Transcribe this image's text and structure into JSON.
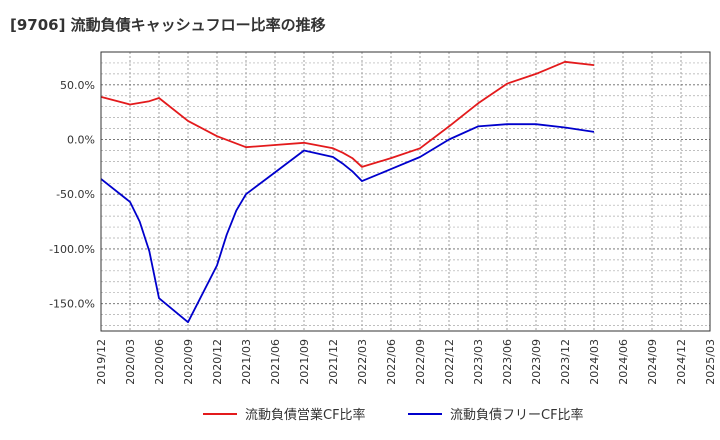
{
  "chart_data": {
    "type": "line",
    "title": "[9706]  流動負債キャッシュフロー比率の推移",
    "xlabel": "",
    "ylabel": "",
    "ylim": [
      -175,
      80
    ],
    "yticks": [
      50,
      0,
      -50,
      -100,
      -150
    ],
    "ytick_labels": [
      "50.0%",
      "0.0%",
      "-50.0%",
      "-100.0%",
      "-150.0%"
    ],
    "x_range": [
      "2019/12",
      "2025/03"
    ],
    "x_ticks": [
      "2019/12",
      "2020/03",
      "2020/06",
      "2020/09",
      "2020/12",
      "2021/03",
      "2021/06",
      "2021/09",
      "2021/12",
      "2022/03",
      "2022/06",
      "2022/09",
      "2022/12",
      "2023/03",
      "2023/06",
      "2023/09",
      "2023/12",
      "2024/03",
      "2024/06",
      "2024/09",
      "2024/12",
      "2025/03"
    ],
    "grid": true,
    "legend_position": "bottom",
    "series": [
      {
        "name": "流動負債営業CF比率",
        "color": "#e31a1c",
        "points": [
          [
            "2019/12",
            39
          ],
          [
            "2020/03",
            32
          ],
          [
            "2020/05",
            35
          ],
          [
            "2020/06",
            38
          ],
          [
            "2020/09",
            17
          ],
          [
            "2020/12",
            3
          ],
          [
            "2021/03",
            -7
          ],
          [
            "2021/06",
            -5
          ],
          [
            "2021/09",
            -3
          ],
          [
            "2021/12",
            -8
          ],
          [
            "2022/01",
            -12
          ],
          [
            "2022/02",
            -17
          ],
          [
            "2022/03",
            -25
          ],
          [
            "2022/06",
            -17
          ],
          [
            "2022/09",
            -8
          ],
          [
            "2022/12",
            12
          ],
          [
            "2023/03",
            33
          ],
          [
            "2023/06",
            51
          ],
          [
            "2023/09",
            60
          ],
          [
            "2023/12",
            71
          ],
          [
            "2024/03",
            68
          ]
        ]
      },
      {
        "name": "流動負債フリーCF比率",
        "color": "#0000cc",
        "points": [
          [
            "2019/12",
            -36
          ],
          [
            "2020/03",
            -57
          ],
          [
            "2020/04",
            -75
          ],
          [
            "2020/05",
            -102
          ],
          [
            "2020/06",
            -145
          ],
          [
            "2020/09",
            -167
          ],
          [
            "2020/12",
            -115
          ],
          [
            "2021/01",
            -87
          ],
          [
            "2021/02",
            -65
          ],
          [
            "2021/03",
            -50
          ],
          [
            "2021/06",
            -30
          ],
          [
            "2021/09",
            -10
          ],
          [
            "2021/12",
            -16
          ],
          [
            "2022/01",
            -22
          ],
          [
            "2022/02",
            -29
          ],
          [
            "2022/03",
            -38
          ],
          [
            "2022/06",
            -27
          ],
          [
            "2022/09",
            -16
          ],
          [
            "2022/12",
            0
          ],
          [
            "2023/03",
            12
          ],
          [
            "2023/06",
            14
          ],
          [
            "2023/09",
            14
          ],
          [
            "2023/12",
            11
          ],
          [
            "2024/03",
            7
          ]
        ]
      }
    ]
  }
}
